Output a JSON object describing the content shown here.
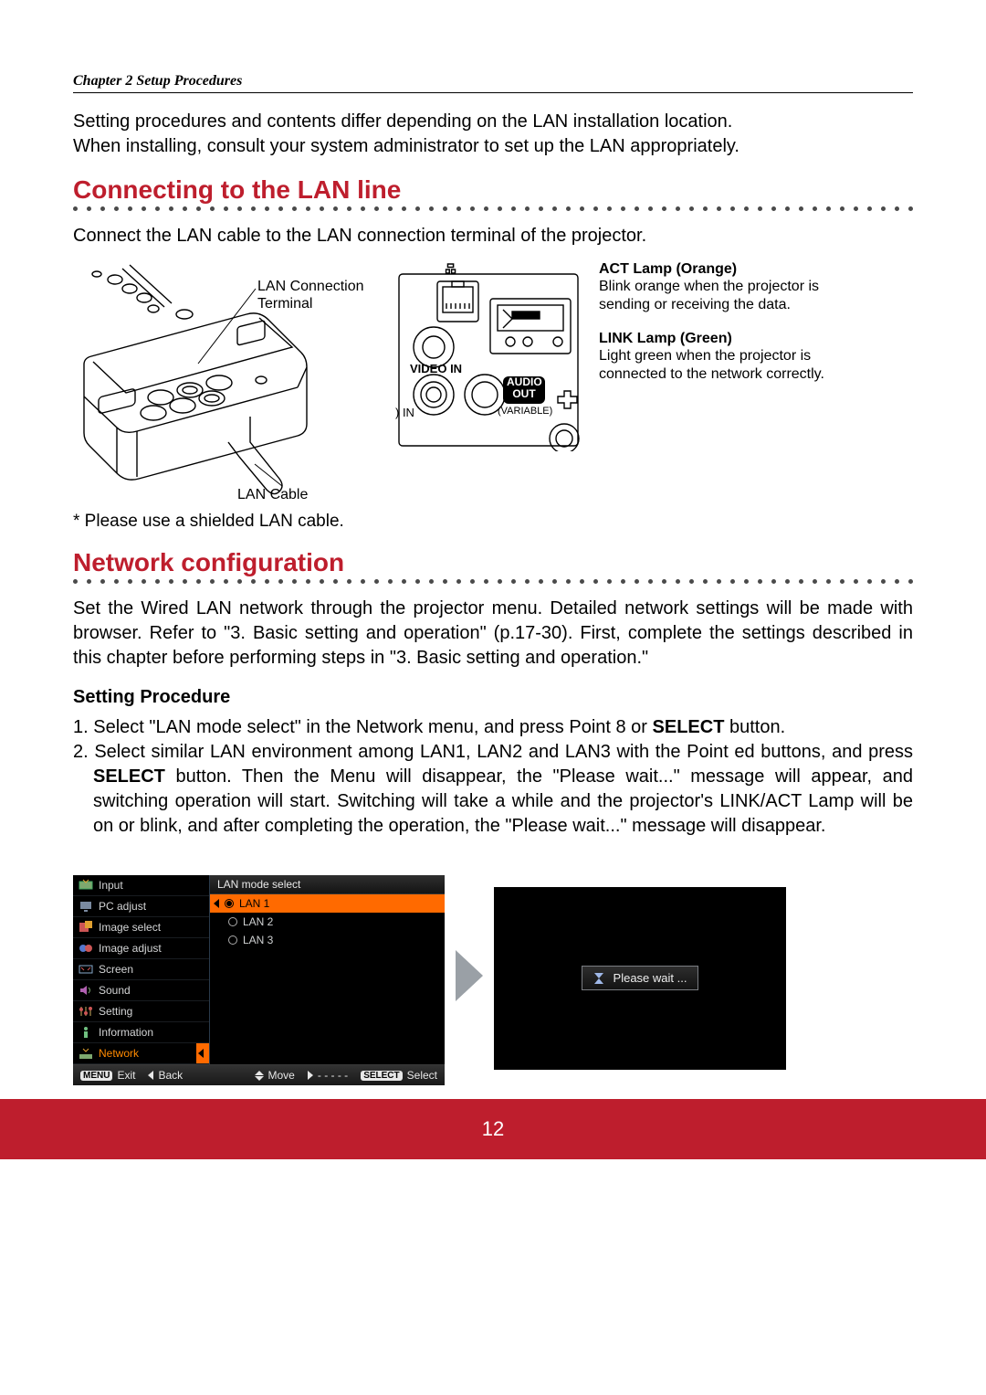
{
  "colors": {
    "accent": "#be1e2d",
    "highlight": "#ff6a00",
    "text": "#000000",
    "menu_bg": "#000000",
    "menu_text": "#d3d4d5"
  },
  "header": {
    "chapter": "Chapter 2 Setup Procedures"
  },
  "intro": {
    "line1": "Setting procedures and contents differ depending on the LAN installation location.",
    "line2": "When installing, consult your system administrator to set up the LAN appropriately."
  },
  "section1": {
    "title": "Connecting to the LAN line",
    "body": "Connect the LAN cable to the LAN connection terminal of the projector.",
    "labels": {
      "lan_terminal_1": "LAN Connection",
      "lan_terminal_2": "Terminal",
      "lan_cable": "LAN Cable",
      "video_in": "VIDEO IN",
      "audio_out_1": "AUDIO",
      "audio_out_2": "OUT",
      "variable": "(VARIABLE)",
      "in": ") IN"
    },
    "lamps": {
      "act_title": "ACT Lamp (Orange)",
      "act_desc": "Blink orange when the projector is sending or receiving the data.",
      "link_title": "LINK Lamp (Green)",
      "link_desc": "Light green when the projector is connected to the network correctly."
    },
    "note": "* Please use a shielded LAN cable."
  },
  "section2": {
    "title": "Network configuration",
    "body": "Set the Wired LAN network through the projector menu. Detailed network settings will be made with browser. Refer to \"3. Basic setting and operation\" (p.17-30). First, complete the settings described in this chapter before performing steps in \"3. Basic setting and operation.\"",
    "sub": "Setting Procedure",
    "steps": {
      "s1_pre": "1. Select \"LAN mode select\" in the Network menu, and press Point  8 or ",
      "s1_b": "SELECT",
      "s1_post": " button.",
      "s2_pre": "2. Select similar LAN environment among LAN1, LAN2 and LAN3 with the Point ed  buttons, and press ",
      "s2_b": "SELECT",
      "s2_post": " button. Then the Menu will disappear, the \"Please wait...\" message will appear, and switching operation will start. Switching will take a while and the projector's LINK/ACT Lamp will be on or blink, and after completing the operation, the \"Please wait...\" message will disappear."
    }
  },
  "menu": {
    "sidebar": [
      {
        "label": "Input"
      },
      {
        "label": "PC adjust"
      },
      {
        "label": "Image select"
      },
      {
        "label": "Image adjust"
      },
      {
        "label": "Screen"
      },
      {
        "label": "Sound"
      },
      {
        "label": "Setting"
      },
      {
        "label": "Information"
      },
      {
        "label": "Network"
      }
    ],
    "right_title": "LAN mode select",
    "options": [
      {
        "label": "LAN 1",
        "selected": true
      },
      {
        "label": "LAN 2",
        "selected": false
      },
      {
        "label": "LAN 3",
        "selected": false
      }
    ],
    "footer": {
      "menu": "MENU",
      "exit": "Exit",
      "back": "Back",
      "move": "Move",
      "dashes": "- - - - -",
      "select_badge": "SELECT",
      "select": "Select"
    }
  },
  "wait": {
    "text": "Please wait ..."
  },
  "page_number": "12"
}
